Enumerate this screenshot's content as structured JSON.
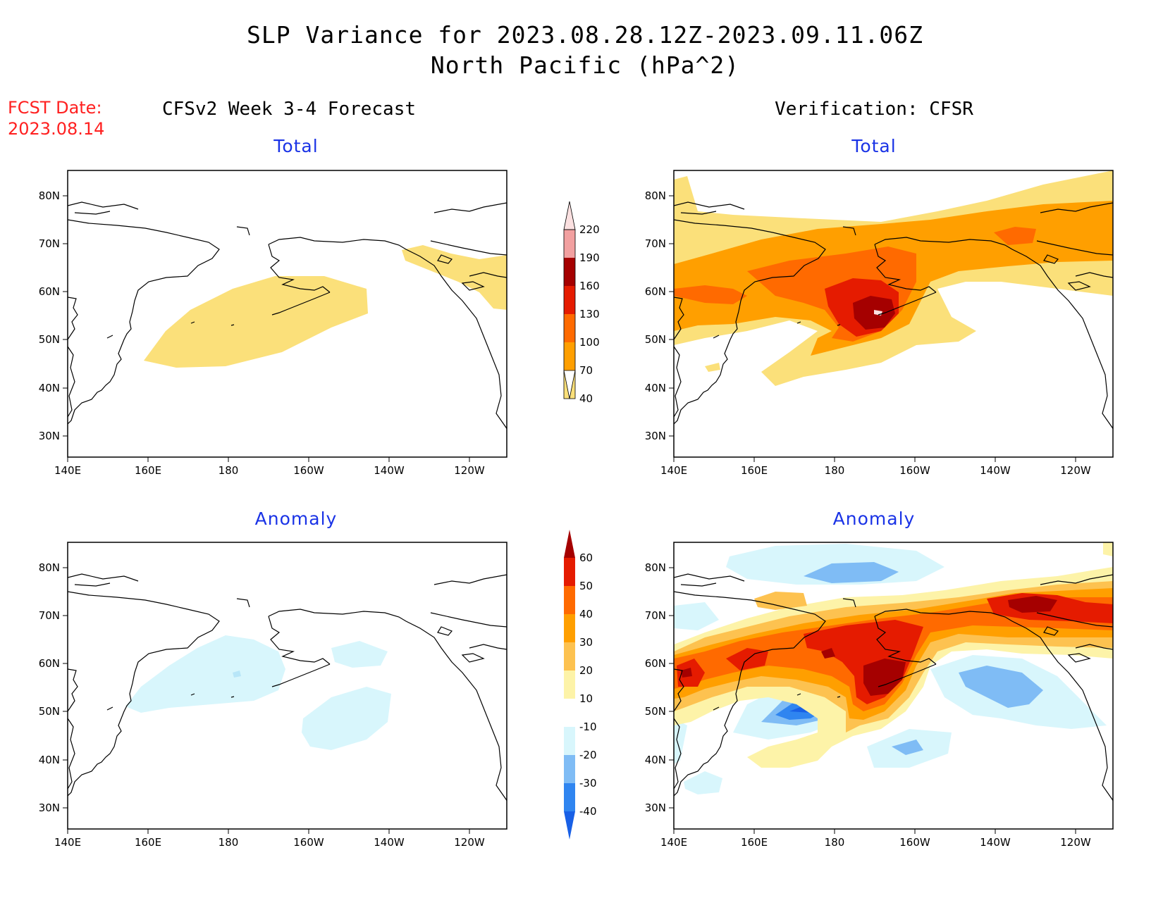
{
  "header": {
    "title_line1": "SLP Variance for 2023.08.28.12Z-2023.09.11.06Z",
    "title_line2": "North Pacific (hPa^2)",
    "fcst_date_label": "FCST Date:",
    "fcst_date_value": "2023.08.14",
    "left_column_title": "CFSv2 Week 3-4 Forecast",
    "right_column_title": "Verification: CFSR"
  },
  "panels": {
    "forecast_total": {
      "label": "Total"
    },
    "verification_total": {
      "label": "Total"
    },
    "forecast_anomaly": {
      "label": "Anomaly"
    },
    "verification_anomaly": {
      "label": "Anomaly"
    }
  },
  "axes": {
    "lat_labels": [
      "80N",
      "70N",
      "60N",
      "50N",
      "40N",
      "30N"
    ],
    "lon_labels": [
      "140E",
      "160E",
      "180",
      "160W",
      "140W",
      "120W"
    ]
  },
  "colorbars": {
    "total": {
      "levels": [
        "40",
        "70",
        "100",
        "130",
        "160",
        "190",
        "220"
      ],
      "colors": [
        "#fbe07a",
        "#ff9f00",
        "#ff6a00",
        "#e51b00",
        "#a50000",
        "#f2a0a0",
        "#fbe0e0"
      ]
    },
    "anomaly": {
      "levels": [
        "-40",
        "-30",
        "-20",
        "-10",
        "10",
        "20",
        "30",
        "40",
        "50",
        "60"
      ],
      "colors": [
        "#1860e6",
        "#2f85f0",
        "#7fbcf5",
        "#d8f6fc",
        "#ffffff",
        "#fdf3a8",
        "#fdc250",
        "#ff9f00",
        "#ff6a00",
        "#e51b00",
        "#a50000"
      ]
    }
  }
}
